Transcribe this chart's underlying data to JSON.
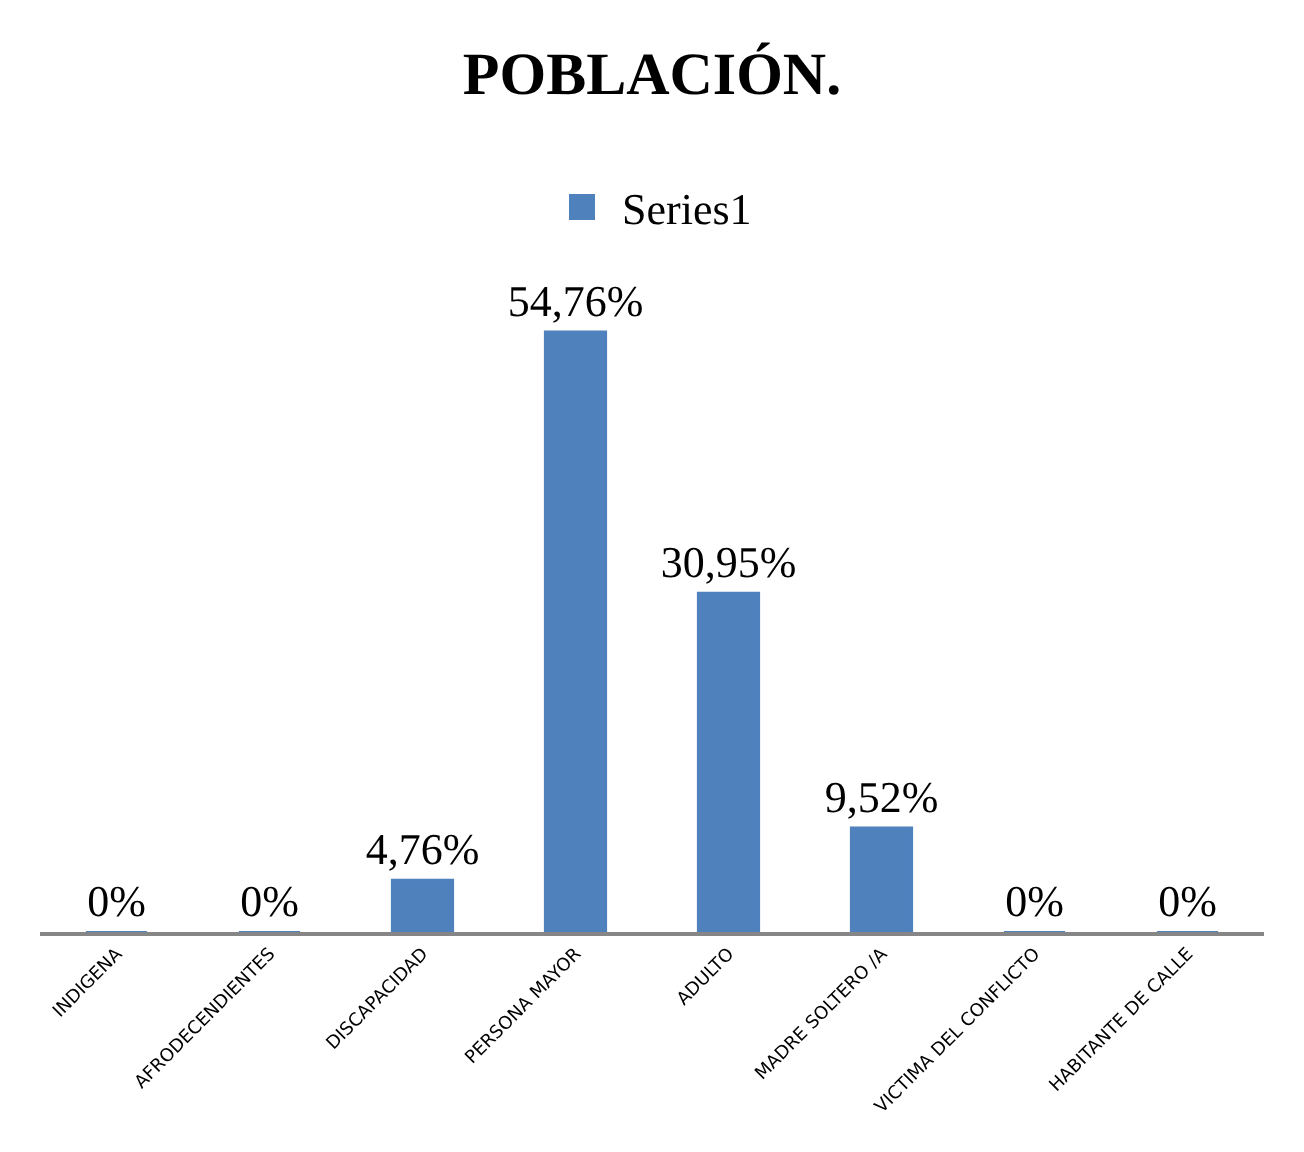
{
  "chart_data": {
    "type": "bar",
    "title": "POBLACIÓN.",
    "categories": [
      "INDIGENA",
      "AFRODECENDIENTES",
      "DISCAPACIDAD",
      "PERSONA MAYOR",
      "ADULTO",
      "MADRE SOLTERO /A",
      "VICTIMA DEL CONFLICTO",
      "HABITANTE DE CALLE"
    ],
    "series": [
      {
        "name": "Series1",
        "color": "#4f81bd",
        "values": [
          0,
          0,
          4.76,
          54.76,
          30.95,
          9.52,
          0,
          0
        ],
        "value_labels": [
          "0%",
          "0%",
          "4,76%",
          "54,76%",
          "30,95%",
          "9,52%",
          "0%",
          "0%"
        ]
      }
    ],
    "legend": "top"
  }
}
